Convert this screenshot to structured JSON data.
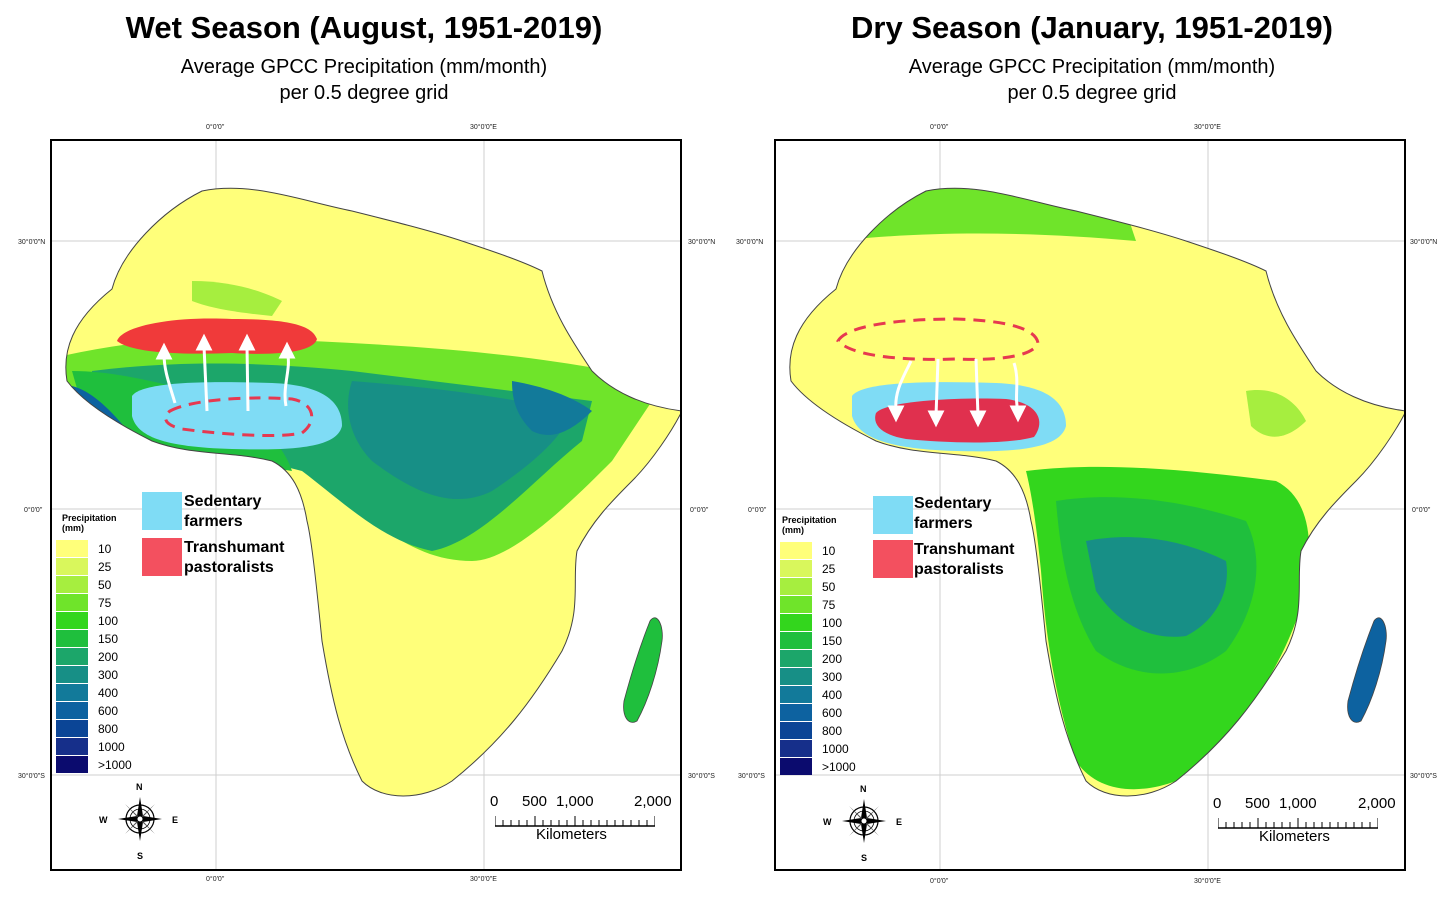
{
  "wet": {
    "title": "Wet Season (August, 1951-2019)",
    "subtitle_line1": "Average GPCC Precipitation (mm/month)",
    "subtitle_line2": "per 0.5 degree grid"
  },
  "dry": {
    "title": "Dry Season (January, 1951-2019)",
    "subtitle_line1": "Average GPCC Precipitation (mm/month)",
    "subtitle_line2": "per 0.5 degree grid"
  },
  "graticule": {
    "lon_0": "0°0'0\"",
    "lon_30e": "30°0'0\"E",
    "lat_30n": "30°0'0\"N",
    "lat_0": "0°0'0\"",
    "lat_30s": "30°0'0\"S"
  },
  "legend": {
    "title_line1": "Precipitation",
    "title_line2": "(mm)",
    "classes": [
      {
        "label": "10",
        "color": "#ffff7a"
      },
      {
        "label": "25",
        "color": "#d9f75c"
      },
      {
        "label": "50",
        "color": "#a6ee3f"
      },
      {
        "label": "75",
        "color": "#6fe42a"
      },
      {
        "label": "100",
        "color": "#33d61d"
      },
      {
        "label": "150",
        "color": "#1fbf3d"
      },
      {
        "label": "200",
        "color": "#1ca66a"
      },
      {
        "label": "300",
        "color": "#178f86"
      },
      {
        "label": "400",
        "color": "#127a9a"
      },
      {
        "label": "600",
        "color": "#0d62a0"
      },
      {
        "label": "800",
        "color": "#0b4596"
      },
      {
        "label": "1000",
        "color": "#162f8a"
      },
      {
        "label": ">1000",
        "color": "#0b0b6e"
      }
    ]
  },
  "key": {
    "sedentary_line1": "Sedentary",
    "sedentary_line2": "farmers",
    "sedentary_color": "#7fdcf5",
    "transhumant_line1": "Transhumant",
    "transhumant_line2": "pastoralists",
    "transhumant_color": "#f3505f"
  },
  "scale_bar": {
    "ticks": [
      "0",
      "500",
      "1,000",
      "2,000"
    ],
    "unit": "Kilometers"
  },
  "compass": {
    "n": "N",
    "s": "S",
    "e": "E",
    "w": "W"
  }
}
